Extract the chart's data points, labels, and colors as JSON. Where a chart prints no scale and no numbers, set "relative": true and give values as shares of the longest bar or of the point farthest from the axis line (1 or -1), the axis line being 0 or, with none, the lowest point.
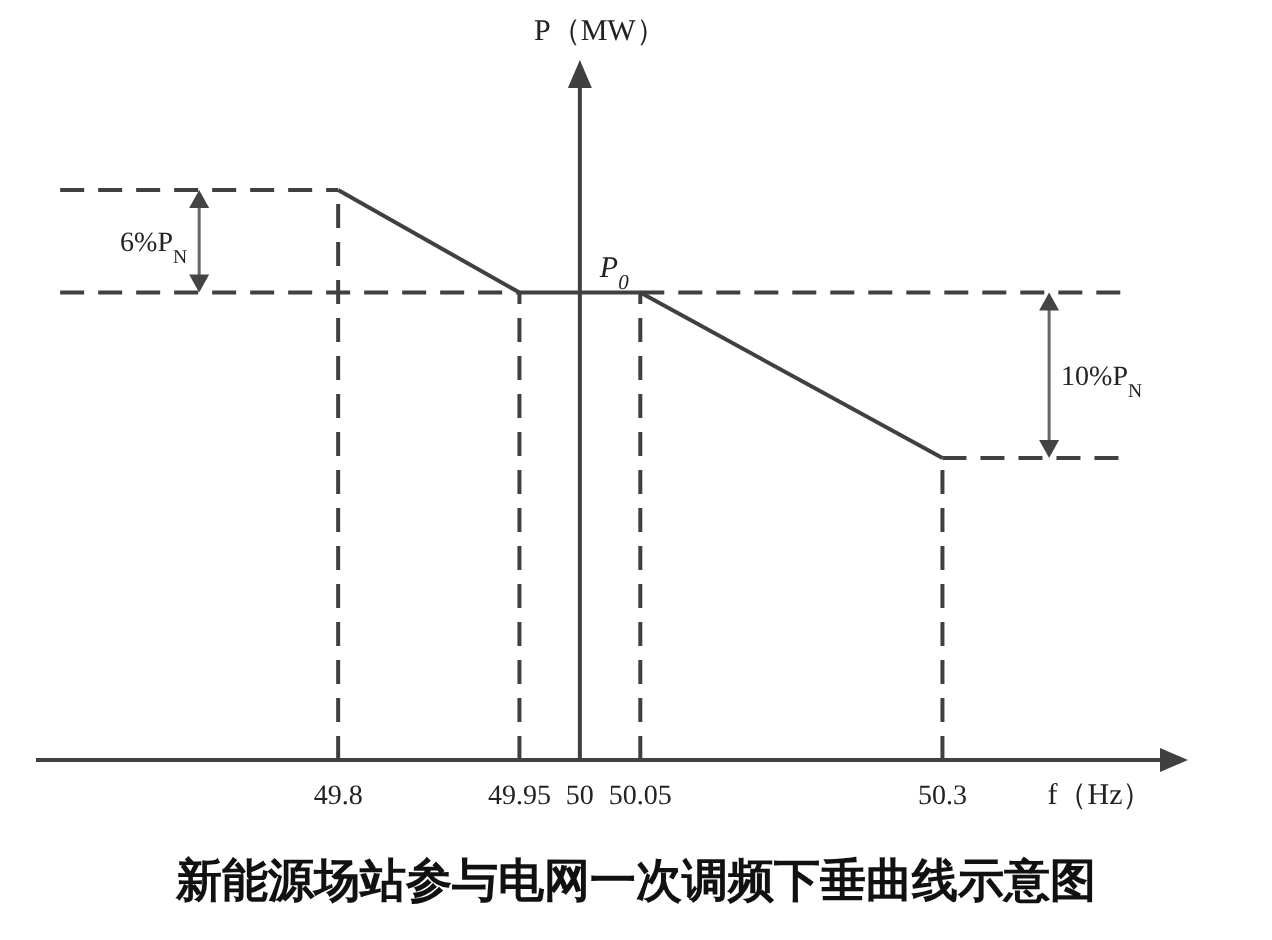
{
  "chart_data": {
    "type": "line",
    "title": "新能源场站参与电网一次调频下垂曲线示意图",
    "xlabel": "f（Hz）",
    "ylabel": "P（MW）",
    "relative": true,
    "xlim": [
      49.55,
      50.48
    ],
    "ref_lines": [
      {
        "axis": "x",
        "value": 50
      }
    ],
    "xticks": [
      49.8,
      49.95,
      50,
      50.05,
      50.3
    ],
    "series": [
      {
        "color": "#404040",
        "line_style": "solid",
        "x": [
          49.8,
          49.95,
          50.05,
          50.3
        ],
        "values": [
          1,
          0.82,
          0.82,
          0.53
        ]
      },
      {
        "color": "#404040",
        "line_style": "dashed",
        "x": [
          49.57,
          49.8
        ],
        "values": [
          1,
          1
        ]
      },
      {
        "color": "#404040",
        "line_style": "dashed",
        "x": [
          49.57,
          49.95
        ],
        "values": [
          0.82,
          0.82
        ]
      },
      {
        "color": "#404040",
        "line_style": "dashed",
        "x": [
          50.05,
          50.45
        ],
        "values": [
          0.82,
          0.82
        ]
      },
      {
        "color": "#404040",
        "line_style": "dashed",
        "x": [
          50.3,
          50.45
        ],
        "values": [
          0.53,
          0.53
        ]
      },
      {
        "color": "#404040",
        "line_style": "dashed",
        "x": [
          49.8,
          49.8
        ],
        "values": [
          0,
          1
        ]
      },
      {
        "color": "#404040",
        "line_style": "dashed",
        "x": [
          49.95,
          49.95
        ],
        "values": [
          0,
          0.82
        ]
      },
      {
        "color": "#404040",
        "line_style": "dashed",
        "x": [
          50.05,
          50.05
        ],
        "values": [
          0,
          0.82
        ]
      },
      {
        "color": "#404040",
        "line_style": "dashed",
        "x": [
          50.3,
          50.3
        ],
        "values": [
          0,
          0.53
        ]
      }
    ],
    "annotations": [
      "6%P$_{N}$",
      "10%P$_{N}$",
      {
        "text": "P$_{0}$",
        "x": 50,
        "y": 0.82
      }
    ]
  }
}
